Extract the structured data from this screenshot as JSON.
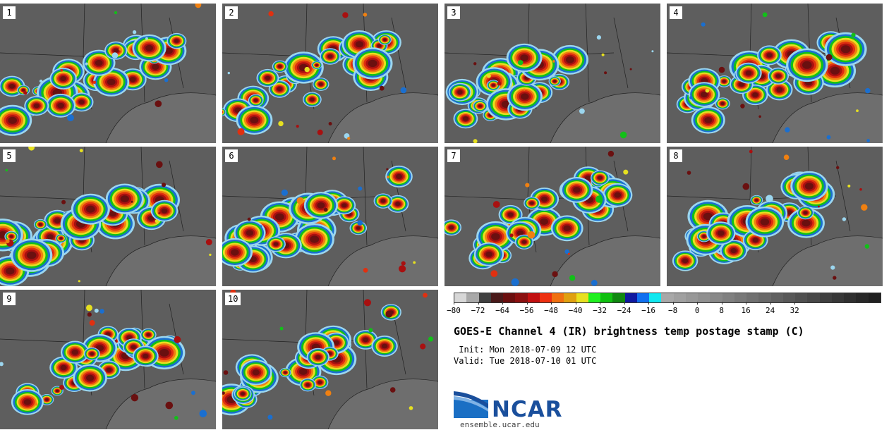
{
  "panels": [
    {
      "label": "1"
    },
    {
      "label": "2"
    },
    {
      "label": "3"
    },
    {
      "label": "4"
    },
    {
      "label": "5"
    },
    {
      "label": "6"
    },
    {
      "label": "7"
    },
    {
      "label": "8"
    },
    {
      "label": "9"
    },
    {
      "label": "10"
    }
  ],
  "colorbar": {
    "ticks": [
      "−80",
      "−72",
      "−64",
      "−56",
      "−48",
      "−40",
      "−32",
      "−24",
      "−16",
      "−8",
      "0",
      "8",
      "16",
      "24",
      "32"
    ],
    "colors": [
      "#d7d7d7",
      "#a8a8a8",
      "#404040",
      "#4a1a1a",
      "#6b0f0f",
      "#8b1010",
      "#c21010",
      "#ee3010",
      "#f07010",
      "#e0a010",
      "#e8e020",
      "#20f020",
      "#10c010",
      "#108810",
      "#1018a0",
      "#1070f0",
      "#10e8f0",
      "#a8a8a8",
      "#a0a0a0",
      "#989898",
      "#909090",
      "#888888",
      "#808080",
      "#787878",
      "#707070",
      "#686868",
      "#606060",
      "#585858",
      "#505050",
      "#484848",
      "#404040",
      "#383838",
      "#303030",
      "#282828",
      "#202020"
    ]
  },
  "title": "GOES-E Channel 4 (IR) brightness temp postage stamp (C)",
  "init": " Init: Mon 2018-07-09 12 UTC",
  "valid": "Valid: Tue 2018-07-10 01 UTC",
  "logo": {
    "name": "NCAR",
    "site": "ensemble.ucar.edu"
  }
}
